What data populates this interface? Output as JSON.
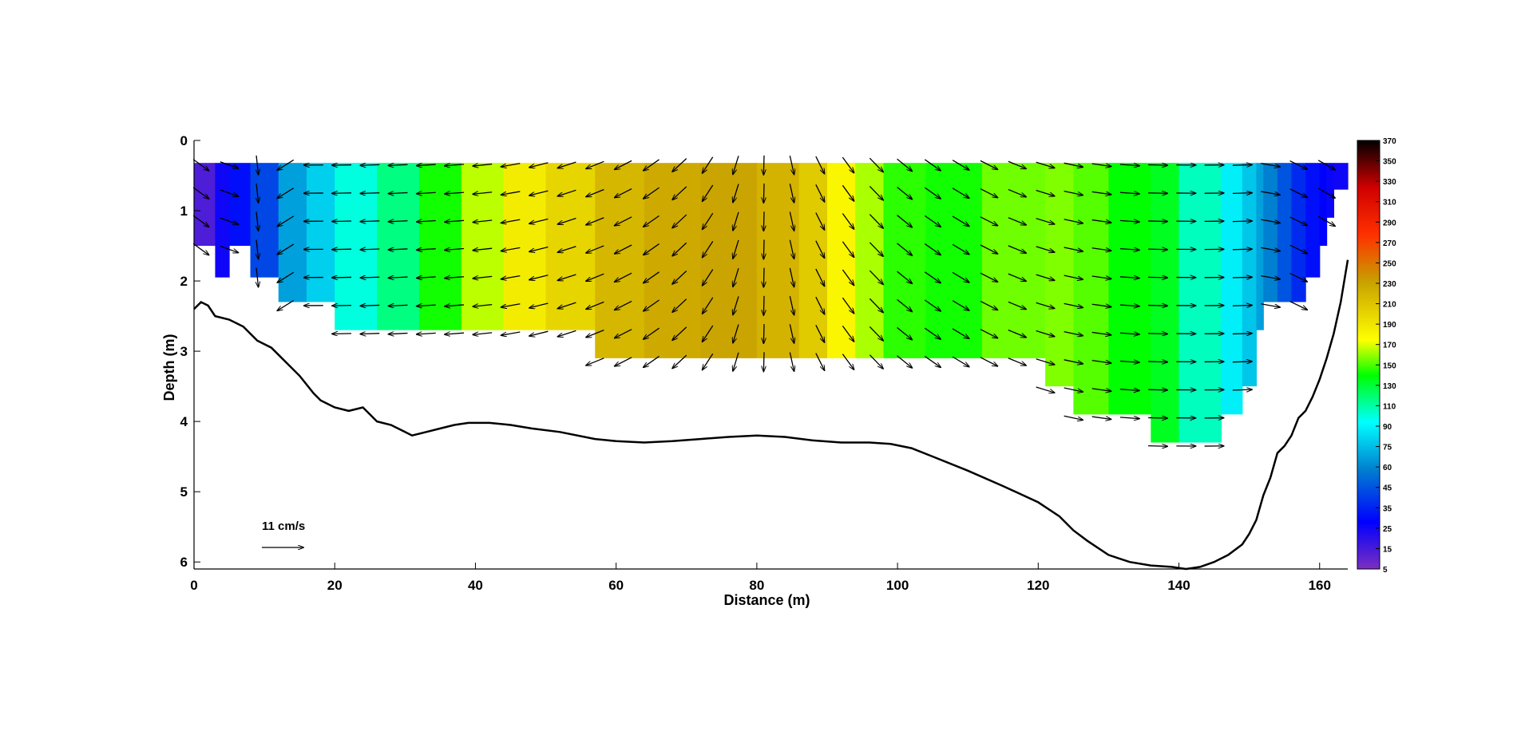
{
  "chart_data": {
    "type": "heatmap",
    "title": "",
    "xlabel": "Distance (m)",
    "ylabel": "Depth (m)",
    "xlim": [
      0,
      164
    ],
    "ylim": [
      6.1,
      0
    ],
    "x_ticks": [
      "0",
      "20",
      "40",
      "60",
      "80",
      "100",
      "120",
      "140",
      "160"
    ],
    "y_ticks": [
      "0",
      "1",
      "2",
      "3",
      "4",
      "5",
      "6"
    ],
    "colorbar": {
      "ticks": [
        "370",
        "350",
        "330",
        "310",
        "290",
        "270",
        "250",
        "230",
        "210",
        "190",
        "170",
        "150",
        "130",
        "110",
        "90",
        "75",
        "60",
        "45",
        "35",
        "25",
        "15",
        "5"
      ],
      "stops": [
        {
          "value": 5,
          "color": "#7b2fbf"
        },
        {
          "value": 45,
          "color": "#0000ff"
        },
        {
          "value": 90,
          "color": "#0080d0"
        },
        {
          "value": 130,
          "color": "#00ffff"
        },
        {
          "value": 170,
          "color": "#00ff00"
        },
        {
          "value": 200,
          "color": "#ffff00"
        },
        {
          "value": 250,
          "color": "#c8a000"
        },
        {
          "value": 290,
          "color": "#ff3000"
        },
        {
          "value": 330,
          "color": "#d00000"
        },
        {
          "value": 370,
          "color": "#000000"
        }
      ]
    },
    "scale_arrow": {
      "label": "11 cm/s",
      "speed": 11
    },
    "columns": [
      {
        "x0": 0,
        "x1": 3,
        "value": 20,
        "bottom": 1.5
      },
      {
        "x0": 3,
        "x1": 5,
        "value": 40,
        "bottom": 1.95
      },
      {
        "x0": 5,
        "x1": 8,
        "value": 50,
        "bottom": 1.5
      },
      {
        "x0": 8,
        "x1": 12,
        "value": 70,
        "bottom": 1.95
      },
      {
        "x0": 12,
        "x1": 16,
        "value": 100,
        "bottom": 2.3
      },
      {
        "x0": 16,
        "x1": 20,
        "value": 115,
        "bottom": 2.3
      },
      {
        "x0": 20,
        "x1": 26,
        "value": 135,
        "bottom": 2.7
      },
      {
        "x0": 26,
        "x1": 32,
        "value": 150,
        "bottom": 2.7
      },
      {
        "x0": 32,
        "x1": 38,
        "value": 172,
        "bottom": 2.7
      },
      {
        "x0": 38,
        "x1": 44,
        "value": 192,
        "bottom": 2.7
      },
      {
        "x0": 44,
        "x1": 50,
        "value": 210,
        "bottom": 2.7
      },
      {
        "x0": 50,
        "x1": 57,
        "value": 222,
        "bottom": 2.7
      },
      {
        "x0": 57,
        "x1": 64,
        "value": 238,
        "bottom": 3.1
      },
      {
        "x0": 64,
        "x1": 72,
        "value": 245,
        "bottom": 3.1
      },
      {
        "x0": 72,
        "x1": 80,
        "value": 248,
        "bottom": 3.1
      },
      {
        "x0": 80,
        "x1": 86,
        "value": 240,
        "bottom": 3.1
      },
      {
        "x0": 86,
        "x1": 90,
        "value": 228,
        "bottom": 3.1
      },
      {
        "x0": 90,
        "x1": 94,
        "value": 205,
        "bottom": 3.1
      },
      {
        "x0": 94,
        "x1": 98,
        "value": 190,
        "bottom": 3.1
      },
      {
        "x0": 98,
        "x1": 104,
        "value": 175,
        "bottom": 3.1
      },
      {
        "x0": 104,
        "x1": 112,
        "value": 172,
        "bottom": 3.1
      },
      {
        "x0": 112,
        "x1": 121,
        "value": 183,
        "bottom": 3.1
      },
      {
        "x0": 121,
        "x1": 125,
        "value": 185,
        "bottom": 3.5
      },
      {
        "x0": 125,
        "x1": 130,
        "value": 180,
        "bottom": 3.9
      },
      {
        "x0": 130,
        "x1": 136,
        "value": 170,
        "bottom": 3.9
      },
      {
        "x0": 136,
        "x1": 140,
        "value": 165,
        "bottom": 4.3
      },
      {
        "x0": 140,
        "x1": 146,
        "value": 140,
        "bottom": 4.3
      },
      {
        "x0": 146,
        "x1": 149,
        "value": 125,
        "bottom": 3.9
      },
      {
        "x0": 149,
        "x1": 151,
        "value": 112,
        "bottom": 3.5
      },
      {
        "x0": 151,
        "x1": 152,
        "value": 100,
        "bottom": 2.7
      },
      {
        "x0": 152,
        "x1": 154,
        "value": 90,
        "bottom": 2.3
      },
      {
        "x0": 154,
        "x1": 156,
        "value": 75,
        "bottom": 2.3
      },
      {
        "x0": 156,
        "x1": 158,
        "value": 60,
        "bottom": 2.3
      },
      {
        "x0": 158,
        "x1": 160,
        "value": 50,
        "bottom": 1.95
      },
      {
        "x0": 160,
        "x1": 161,
        "value": 45,
        "bottom": 1.5
      },
      {
        "x0": 161,
        "x1": 162,
        "value": 42,
        "bottom": 1.1
      },
      {
        "x0": 162,
        "x1": 164,
        "value": 40,
        "bottom": 0.7
      }
    ],
    "arrow_direction_by_x": [
      {
        "x": 0,
        "dir": 320
      },
      {
        "x": 5,
        "dir": 340
      },
      {
        "x": 15,
        "dir": 180
      },
      {
        "x": 40,
        "dir": 185
      },
      {
        "x": 60,
        "dir": 205
      },
      {
        "x": 70,
        "dir": 225
      },
      {
        "x": 80,
        "dir": 265
      },
      {
        "x": 90,
        "dir": 300
      },
      {
        "x": 100,
        "dir": 320
      },
      {
        "x": 115,
        "dir": 335
      },
      {
        "x": 125,
        "dir": 348
      },
      {
        "x": 135,
        "dir": 358
      },
      {
        "x": 150,
        "dir": 2
      },
      {
        "x": 158,
        "dir": 330
      },
      {
        "x": 164,
        "dir": 330
      }
    ],
    "bottom_profile": [
      [
        0,
        2.4
      ],
      [
        1,
        2.3
      ],
      [
        2,
        2.35
      ],
      [
        3,
        2.5
      ],
      [
        5,
        2.55
      ],
      [
        7,
        2.65
      ],
      [
        9,
        2.85
      ],
      [
        11,
        2.95
      ],
      [
        13,
        3.15
      ],
      [
        15,
        3.35
      ],
      [
        17,
        3.6
      ],
      [
        18,
        3.7
      ],
      [
        20,
        3.8
      ],
      [
        22,
        3.85
      ],
      [
        24,
        3.8
      ],
      [
        25,
        3.9
      ],
      [
        26,
        4.0
      ],
      [
        28,
        4.05
      ],
      [
        30,
        4.15
      ],
      [
        31,
        4.2
      ],
      [
        33,
        4.15
      ],
      [
        35,
        4.1
      ],
      [
        37,
        4.05
      ],
      [
        39,
        4.02
      ],
      [
        42,
        4.02
      ],
      [
        45,
        4.05
      ],
      [
        48,
        4.1
      ],
      [
        52,
        4.15
      ],
      [
        57,
        4.25
      ],
      [
        60,
        4.28
      ],
      [
        64,
        4.3
      ],
      [
        68,
        4.28
      ],
      [
        72,
        4.25
      ],
      [
        76,
        4.22
      ],
      [
        80,
        4.2
      ],
      [
        84,
        4.22
      ],
      [
        88,
        4.27
      ],
      [
        92,
        4.3
      ],
      [
        96,
        4.3
      ],
      [
        99,
        4.32
      ],
      [
        102,
        4.38
      ],
      [
        105,
        4.5
      ],
      [
        110,
        4.7
      ],
      [
        115,
        4.92
      ],
      [
        120,
        5.15
      ],
      [
        123,
        5.35
      ],
      [
        125,
        5.55
      ],
      [
        127,
        5.7
      ],
      [
        130,
        5.9
      ],
      [
        133,
        6.0
      ],
      [
        136,
        6.05
      ],
      [
        139,
        6.07
      ],
      [
        141,
        6.1
      ],
      [
        143,
        6.07
      ],
      [
        145,
        6.0
      ],
      [
        147,
        5.9
      ],
      [
        149,
        5.75
      ],
      [
        150,
        5.6
      ],
      [
        151,
        5.4
      ],
      [
        152,
        5.05
      ],
      [
        153,
        4.8
      ],
      [
        154,
        4.45
      ],
      [
        155,
        4.35
      ],
      [
        156,
        4.2
      ],
      [
        157,
        3.95
      ],
      [
        158,
        3.85
      ],
      [
        159,
        3.65
      ],
      [
        160,
        3.4
      ],
      [
        161,
        3.1
      ],
      [
        162,
        2.75
      ],
      [
        163,
        2.3
      ],
      [
        164,
        1.7
      ]
    ]
  }
}
